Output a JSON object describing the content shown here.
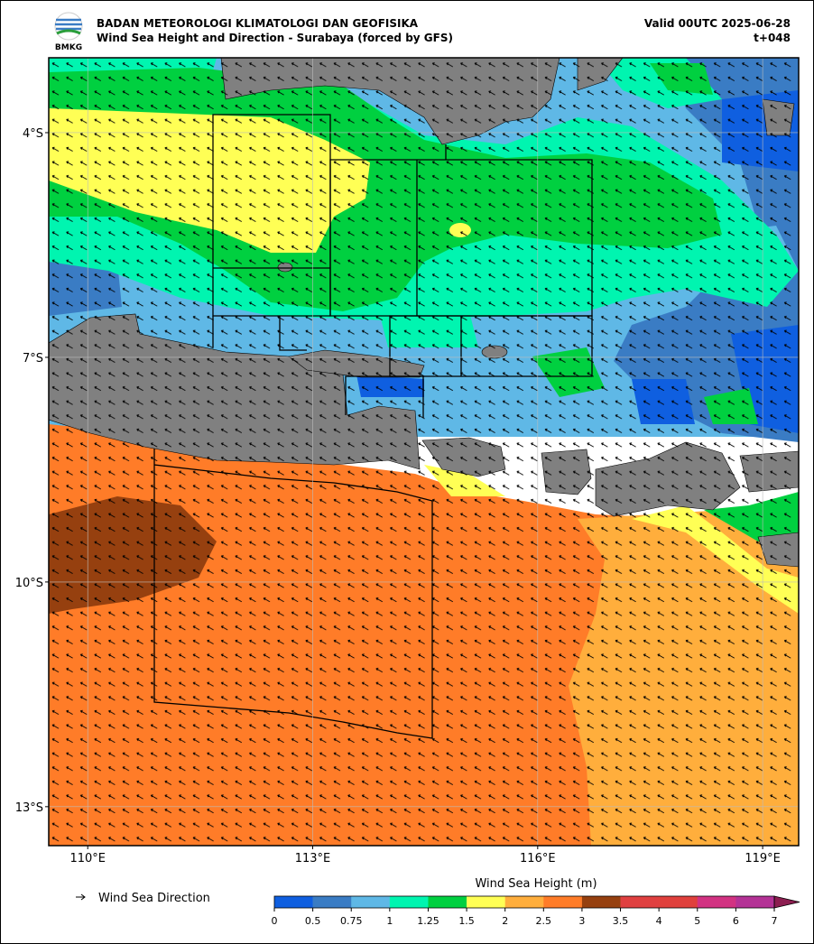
{
  "chart_data": {
    "type": "map",
    "title": "BADAN METEOROLOGI KLIMATOLOGI DAN GEOFISIKA",
    "subtitle": "Wind Sea Height and Direction - Surabaya (forced by GFS)",
    "valid": "Valid 00UTC 2025-06-28",
    "lead": "t+048",
    "logo_text": "BMKG",
    "xlim": [
      109.48,
      119.48
    ],
    "ylim": [
      -13.52,
      -3.0
    ],
    "xticks": [
      {
        "value": 110,
        "label": "110°E"
      },
      {
        "value": 113,
        "label": "113°E"
      },
      {
        "value": 116,
        "label": "116°E"
      },
      {
        "value": 119,
        "label": "119°E"
      }
    ],
    "yticks": [
      {
        "value": -4,
        "label": "4°S"
      },
      {
        "value": -7,
        "label": "7°S"
      },
      {
        "value": -10,
        "label": "10°S"
      },
      {
        "value": -13,
        "label": "13°S"
      }
    ],
    "grid": true,
    "legend_label": "Wind Sea Direction",
    "colorbar": {
      "label": "Wind Sea Height (m)",
      "ticks": [
        0,
        0.5,
        0.75,
        1,
        1.25,
        1.5,
        2,
        2.5,
        3,
        3.5,
        4,
        5,
        6,
        7
      ],
      "colors": [
        "#0f5fe0",
        "#3a7cc4",
        "#5fb8e6",
        "#00f5b0",
        "#00d040",
        "#ffff55",
        "#ffae3c",
        "#ff7c28",
        "#96400f",
        "#e04040",
        "#e0403c",
        "#d23282",
        "#b43296"
      ],
      "extend_color": "#8c1e50"
    }
  }
}
